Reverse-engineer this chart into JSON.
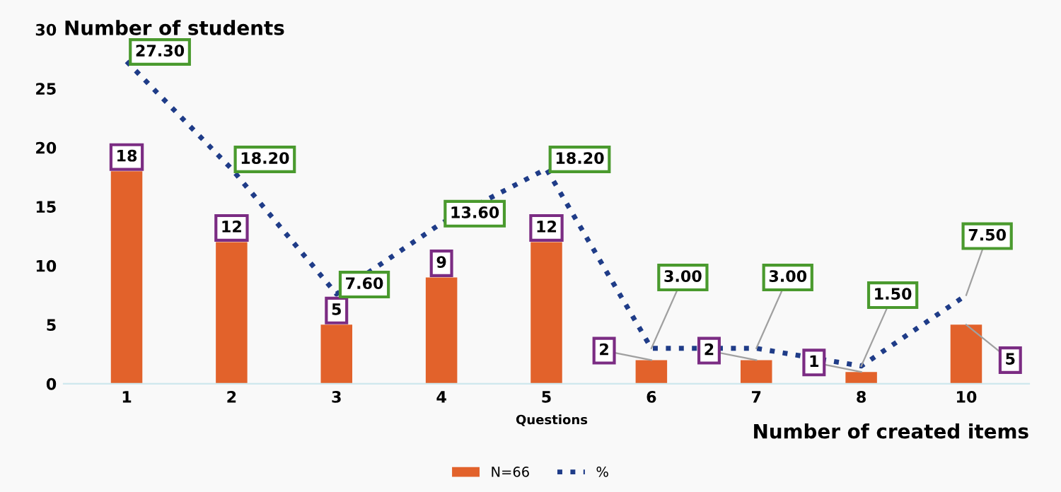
{
  "chart_data": {
    "type": "bar",
    "ylabel": "Number of students",
    "xlabel": "Number of created items",
    "annotations": [
      "Questions"
    ],
    "categories": [
      "1",
      "2",
      "3",
      "4",
      "5",
      "6",
      "7",
      "8",
      "10"
    ],
    "series": [
      {
        "name": "N=66",
        "color": "#e2622b",
        "values": [
          18,
          12,
          5,
          9,
          12,
          2,
          2,
          1,
          5
        ]
      },
      {
        "name": "%",
        "type": "line",
        "color": "#1f3c88",
        "line_style": "dotted",
        "values": [
          27.3,
          18.2,
          7.6,
          13.6,
          18.2,
          3.0,
          3.0,
          1.5,
          7.5
        ],
        "value_labels": [
          "27.30",
          "18.20",
          "7.60",
          "13.60",
          "18.20",
          "3.00",
          "3.00",
          "1.50",
          "7.50"
        ]
      }
    ],
    "data_labels": true,
    "ylim": [
      0,
      30
    ],
    "yticks": [
      0,
      5,
      10,
      15,
      20,
      25,
      30
    ],
    "grid": false,
    "legend": "bottom"
  }
}
